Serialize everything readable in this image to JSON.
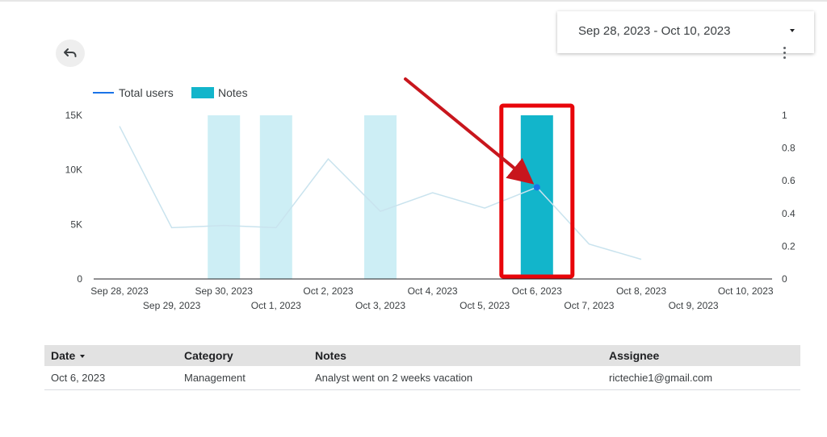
{
  "date_range": {
    "label": "Sep 28, 2023 - Oct 10, 2023"
  },
  "toolbar": {
    "undo_icon": "undo-icon",
    "more_icon": "more-vert-icon",
    "dropdown_icon": "caret-down-icon"
  },
  "colors": {
    "line": "#1a73e8",
    "line_faded": "#c9e3ee",
    "bar_highlight": "#12b5cb",
    "bar_faded": "#cdeef5",
    "annotation": "#e8050a",
    "arrow": "#c8161d",
    "point": "#1a73e8"
  },
  "chart_data": {
    "type": "bar",
    "legend": [
      {
        "name": "Total users",
        "kind": "line"
      },
      {
        "name": "Notes",
        "kind": "bar"
      }
    ],
    "legend_placement": "top-left",
    "grid": false,
    "x": [
      "Sep 28, 2023",
      "Sep 29, 2023",
      "Sep 30, 2023",
      "Oct 1, 2023",
      "Oct 2, 2023",
      "Oct 3, 2023",
      "Oct 4, 2023",
      "Oct 5, 2023",
      "Oct 6, 2023",
      "Oct 7, 2023",
      "Oct 8, 2023",
      "Oct 9, 2023",
      "Oct 10, 2023"
    ],
    "y_left_ticks": [
      "0",
      "5K",
      "10K",
      "15K"
    ],
    "y_left_lim": [
      0,
      15000
    ],
    "y_right_ticks": [
      "0",
      "0.2",
      "0.4",
      "0.6",
      "0.8",
      "1"
    ],
    "y_right_lim": [
      0,
      1
    ],
    "series": [
      {
        "name": "Total users",
        "type": "line",
        "axis": "left",
        "x": [
          "Sep 28, 2023",
          "Sep 29, 2023",
          "Sep 30, 2023",
          "Oct 1, 2023",
          "Oct 2, 2023",
          "Oct 3, 2023",
          "Oct 4, 2023",
          "Oct 5, 2023",
          "Oct 6, 2023",
          "Oct 7, 2023",
          "Oct 8, 2023"
        ],
        "values": [
          14000,
          4700,
          4900,
          4700,
          11000,
          6200,
          7900,
          6500,
          8400,
          3200,
          1800
        ]
      },
      {
        "name": "Notes",
        "type": "bar",
        "axis": "right",
        "x": [
          "Sep 30, 2023",
          "Oct 1, 2023",
          "Oct 3, 2023",
          "Oct 6, 2023"
        ],
        "values": [
          1,
          1,
          1,
          1
        ],
        "highlighted": "Oct 6, 2023"
      }
    ],
    "highlight_point": {
      "x": "Oct 6, 2023",
      "value": 8400
    }
  },
  "table": {
    "columns": [
      "Date",
      "Category",
      "Notes",
      "Assignee"
    ],
    "sort_column": "Date",
    "rows": [
      {
        "date": "Oct 6, 2023",
        "category": "Management",
        "notes": "Analyst went on 2 weeks vacation",
        "assignee": "rictechie1@gmail.com"
      }
    ]
  }
}
